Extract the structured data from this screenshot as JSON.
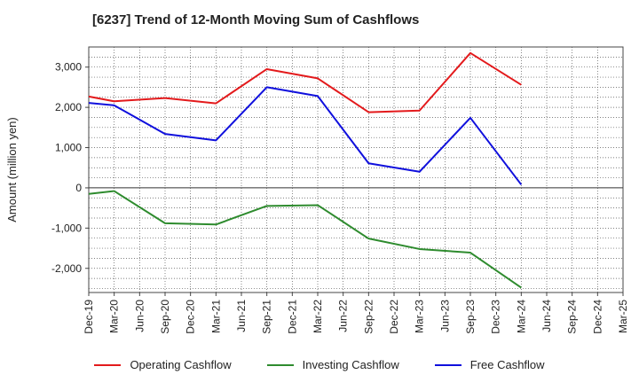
{
  "title": "[6237]  Trend of 12-Month Moving Sum of Cashflows",
  "chart_data": {
    "type": "line",
    "title": "[6237]  Trend of 12-Month Moving Sum of Cashflows",
    "xlabel": "",
    "ylabel": "Amount (million yen)",
    "ylim": [
      -2600,
      3500
    ],
    "yticks": [
      3000,
      2000,
      1000,
      0,
      -1000,
      -2000
    ],
    "ytick_labels": [
      "3,000",
      "2,000",
      "1,000",
      "0",
      "-1,000",
      "-2,000"
    ],
    "grid": true,
    "legend_position": "bottom",
    "categories": [
      "Dec-19",
      "Mar-20",
      "Jun-20",
      "Sep-20",
      "Dec-20",
      "Mar-21",
      "Jun-21",
      "Sep-21",
      "Dec-21",
      "Mar-22",
      "Jun-22",
      "Sep-22",
      "Dec-22",
      "Mar-23",
      "Jun-23",
      "Sep-23",
      "Dec-23",
      "Mar-24",
      "Jun-24",
      "Sep-24",
      "Dec-24",
      "Mar-25"
    ],
    "series": [
      {
        "name": "Operating Cashflow",
        "color": "#e31a1c",
        "values": [
          2270,
          2150,
          null,
          2230,
          null,
          2100,
          null,
          2950,
          null,
          2720,
          null,
          1880,
          null,
          1920,
          null,
          3350,
          null,
          2560,
          null,
          null,
          null,
          null
        ]
      },
      {
        "name": "Investing Cashflow",
        "color": "#2e8b2e",
        "values": [
          -150,
          -80,
          null,
          -880,
          null,
          -910,
          null,
          -450,
          null,
          -430,
          null,
          -1260,
          null,
          -1520,
          null,
          -1610,
          null,
          -2480,
          null,
          null,
          null,
          null
        ]
      },
      {
        "name": "Free Cashflow",
        "color": "#1010dd",
        "values": [
          2110,
          2050,
          null,
          1340,
          null,
          1180,
          null,
          2500,
          null,
          2280,
          null,
          610,
          null,
          400,
          null,
          1740,
          null,
          80,
          null,
          null,
          null,
          null
        ]
      }
    ]
  }
}
